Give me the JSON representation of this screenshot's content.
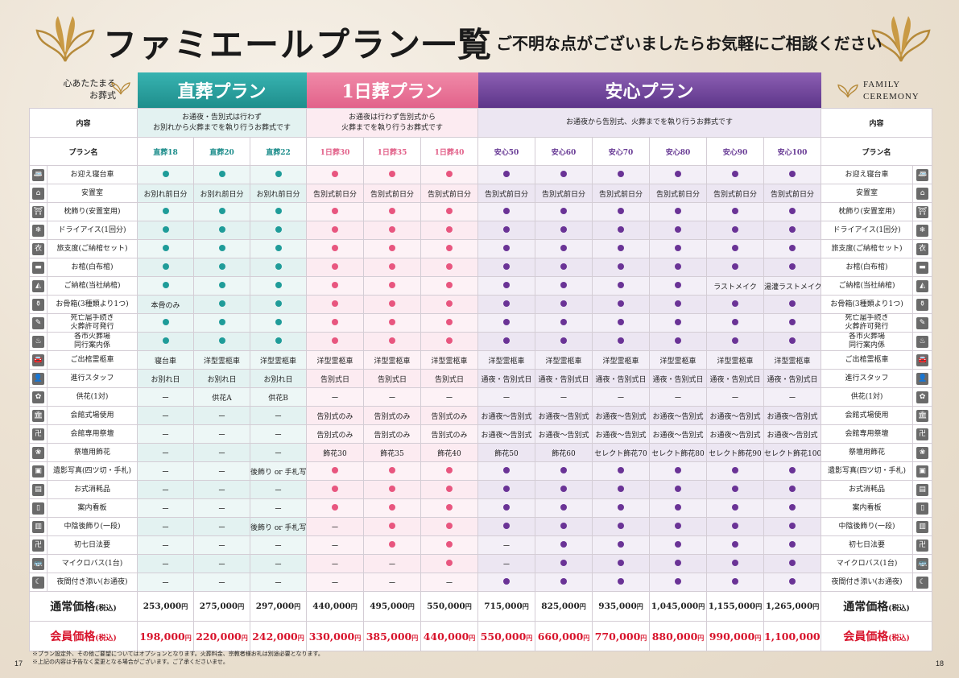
{
  "header": {
    "title": "ファミエールプラン一覧",
    "subtitle": "ご不明な点がございましたらお気軽にご相談ください",
    "left_label_1": "心あたたまる",
    "left_label_2": "お葬式",
    "right_label_1": "FAMILY",
    "right_label_2": "CEREMONY"
  },
  "groups": {
    "choku": "直葬プラン",
    "ichi": "1日葬プラン",
    "anshin": "安心プラン"
  },
  "row_heads": {
    "content": "内容",
    "plan_name": "プラン名"
  },
  "descriptions": {
    "choku_1": "お通夜・告別式は行わず",
    "choku_2": "お別れから火葬までを執り行うお葬式です",
    "ichi_1": "お通夜は行わず告別式から",
    "ichi_2": "火葬までを執り行うお葬式です",
    "anshin": "お通夜から告別式、火葬までを執り行うお葬式です"
  },
  "plans": [
    "直葬18",
    "直葬20",
    "直葬22",
    "1日葬30",
    "1日葬35",
    "1日葬40",
    "安心50",
    "安心60",
    "安心70",
    "安心80",
    "安心90",
    "安心100"
  ],
  "rows": [
    {
      "icon": "hearse-icon",
      "glyph": "🚐",
      "label": "お迎え寝台車",
      "cells": [
        "●",
        "●",
        "●",
        "●",
        "●",
        "●",
        "●",
        "●",
        "●",
        "●",
        "●",
        "●"
      ]
    },
    {
      "icon": "room-icon",
      "glyph": "⌂",
      "label": "安置室",
      "cells": [
        "お別れ前日分",
        "お別れ前日分",
        "お別れ前日分",
        "告別式前日分",
        "告別式前日分",
        "告別式前日分",
        "告別式前日分",
        "告別式前日分",
        "告別式前日分",
        "告別式前日分",
        "告別式前日分",
        "告別式前日分"
      ]
    },
    {
      "icon": "altar-icon",
      "glyph": "⛩",
      "label": "枕飾り(安置室用)",
      "cells": [
        "●",
        "●",
        "●",
        "●",
        "●",
        "●",
        "●",
        "●",
        "●",
        "●",
        "●",
        "●"
      ]
    },
    {
      "icon": "dry-ice-icon",
      "glyph": "❄",
      "label": "ドライアイス(1回分)",
      "cells": [
        "●",
        "●",
        "●",
        "●",
        "●",
        "●",
        "●",
        "●",
        "●",
        "●",
        "●",
        "●"
      ]
    },
    {
      "icon": "kimono-icon",
      "glyph": "衣",
      "label": "旅支度(ご納棺セット)",
      "cells": [
        "●",
        "●",
        "●",
        "●",
        "●",
        "●",
        "●",
        "●",
        "●",
        "●",
        "●",
        "●"
      ]
    },
    {
      "icon": "coffin-icon",
      "glyph": "▬",
      "label": "お棺(白布棺)",
      "cells": [
        "●",
        "●",
        "●",
        "●",
        "●",
        "●",
        "●",
        "●",
        "●",
        "●",
        "●",
        "●"
      ]
    },
    {
      "icon": "encoffin-icon",
      "glyph": "◭",
      "label": "ご納棺(当社納棺)",
      "cells": [
        "●",
        "●",
        "●",
        "●",
        "●",
        "●",
        "●",
        "●",
        "●",
        "●",
        "ラストメイク",
        "湯灌ラストメイク"
      ]
    },
    {
      "icon": "urn-icon",
      "glyph": "⚱",
      "label": "お骨箱(3種類より1つ)",
      "cells": [
        "本骨のみ",
        "●",
        "●",
        "●",
        "●",
        "●",
        "●",
        "●",
        "●",
        "●",
        "●",
        "●"
      ]
    },
    {
      "icon": "document-icon",
      "glyph": "✎",
      "label": "死亡届手続き\n火葬許可発行",
      "cells": [
        "●",
        "●",
        "●",
        "●",
        "●",
        "●",
        "●",
        "●",
        "●",
        "●",
        "●",
        "●"
      ]
    },
    {
      "icon": "crematorium-icon",
      "glyph": "♨",
      "label": "各市火葬場\n同行案内係",
      "cells": [
        "●",
        "●",
        "●",
        "●",
        "●",
        "●",
        "●",
        "●",
        "●",
        "●",
        "●",
        "●"
      ]
    },
    {
      "icon": "car-icon",
      "glyph": "🚘",
      "label": "ご出棺霊柩車",
      "cells": [
        "寝台車",
        "洋型霊柩車",
        "洋型霊柩車",
        "洋型霊柩車",
        "洋型霊柩車",
        "洋型霊柩車",
        "洋型霊柩車",
        "洋型霊柩車",
        "洋型霊柩車",
        "洋型霊柩車",
        "洋型霊柩車",
        "洋型霊柩車"
      ]
    },
    {
      "icon": "staff-icon",
      "glyph": "👤",
      "label": "進行スタッフ",
      "cells": [
        "お別れ日",
        "お別れ日",
        "お別れ日",
        "告別式日",
        "告別式日",
        "告別式日",
        "通夜・告別式日",
        "通夜・告別式日",
        "通夜・告別式日",
        "通夜・告別式日",
        "通夜・告別式日",
        "通夜・告別式日"
      ]
    },
    {
      "icon": "flower-icon",
      "glyph": "✿",
      "label": "供花(1対)",
      "cells": [
        "ー",
        "供花A",
        "供花B",
        "ー",
        "ー",
        "ー",
        "ー",
        "ー",
        "ー",
        "ー",
        "ー",
        "ー"
      ]
    },
    {
      "icon": "hall-icon",
      "glyph": "🏛",
      "label": "会館式場使用",
      "cells": [
        "ー",
        "ー",
        "ー",
        "告別式のみ",
        "告別式のみ",
        "告別式のみ",
        "お通夜～告別式",
        "お通夜～告別式",
        "お通夜～告別式",
        "お通夜～告別式",
        "お通夜～告別式",
        "お通夜～告別式"
      ]
    },
    {
      "icon": "altar-stand-icon",
      "glyph": "卍",
      "label": "会館専用祭壇",
      "cells": [
        "ー",
        "ー",
        "ー",
        "告別式のみ",
        "告別式のみ",
        "告別式のみ",
        "お通夜～告別式",
        "お通夜～告別式",
        "お通夜～告別式",
        "お通夜～告別式",
        "お通夜～告別式",
        "お通夜～告別式"
      ]
    },
    {
      "icon": "bouquet-icon",
      "glyph": "❀",
      "label": "祭壇用飾花",
      "cells": [
        "ー",
        "ー",
        "ー",
        "飾花30",
        "飾花35",
        "飾花40",
        "飾花50",
        "飾花60",
        "セレクト飾花70",
        "セレクト飾花80",
        "セレクト飾花90",
        "セレクト飾花100"
      ]
    },
    {
      "icon": "portrait-icon",
      "glyph": "▣",
      "label": "遺影写真(四ツ切・手札)",
      "cells": [
        "ー",
        "ー",
        "後飾り or 手札写真",
        "●",
        "●",
        "●",
        "●",
        "●",
        "●",
        "●",
        "●",
        "●"
      ]
    },
    {
      "icon": "supplies-icon",
      "glyph": "▤",
      "label": "お式消耗品",
      "cells": [
        "ー",
        "ー",
        "ー",
        "●",
        "●",
        "●",
        "●",
        "●",
        "●",
        "●",
        "●",
        "●"
      ]
    },
    {
      "icon": "signboard-icon",
      "glyph": "▯",
      "label": "案内看板",
      "cells": [
        "ー",
        "ー",
        "ー",
        "●",
        "●",
        "●",
        "●",
        "●",
        "●",
        "●",
        "●",
        "●"
      ]
    },
    {
      "icon": "shelf-icon",
      "glyph": "▥",
      "label": "中陰後飾り(一段)",
      "cells": [
        "ー",
        "ー",
        "後飾り or 手札写真",
        "ー",
        "●",
        "●",
        "●",
        "●",
        "●",
        "●",
        "●",
        "●"
      ]
    },
    {
      "icon": "memorial-icon",
      "glyph": "卍",
      "label": "初七日法要",
      "cells": [
        "ー",
        "ー",
        "ー",
        "ー",
        "●",
        "●",
        "ー",
        "●",
        "●",
        "●",
        "●",
        "●"
      ]
    },
    {
      "icon": "bus-icon",
      "glyph": "🚌",
      "label": "マイクロバス(1台)",
      "cells": [
        "ー",
        "ー",
        "ー",
        "ー",
        "ー",
        "●",
        "ー",
        "●",
        "●",
        "●",
        "●",
        "●"
      ]
    },
    {
      "icon": "moon-icon",
      "glyph": "☾",
      "label": "夜間付き添い(お通夜)",
      "cells": [
        "ー",
        "ー",
        "ー",
        "ー",
        "ー",
        "ー",
        "●",
        "●",
        "●",
        "●",
        "●",
        "●"
      ]
    }
  ],
  "prices": {
    "regular_label": "通常価格",
    "member_label": "会員価格",
    "tax": "(税込)",
    "yen": "円",
    "regular": [
      "253,000",
      "275,000",
      "297,000",
      "440,000",
      "495,000",
      "550,000",
      "715,000",
      "825,000",
      "935,000",
      "1,045,000",
      "1,155,000",
      "1,265,000"
    ],
    "member": [
      "198,000",
      "220,000",
      "242,000",
      "330,000",
      "385,000",
      "440,000",
      "550,000",
      "660,000",
      "770,000",
      "880,000",
      "990,000",
      "1,100,000"
    ]
  },
  "footer": {
    "note_1": "※プラン設定外、その他ご要望についてはオプションとなります。火葬料金、宗教者様お礼は別途必要となります。",
    "note_2": "※上記の内容は予告なく変更となる場合がございます。ご了承くださいませ。",
    "page_left": "17",
    "page_right": "18"
  },
  "colors": {
    "teal": "#1f9c99",
    "pink": "#e8567f",
    "purple": "#6a3396",
    "red": "#d8142c"
  }
}
